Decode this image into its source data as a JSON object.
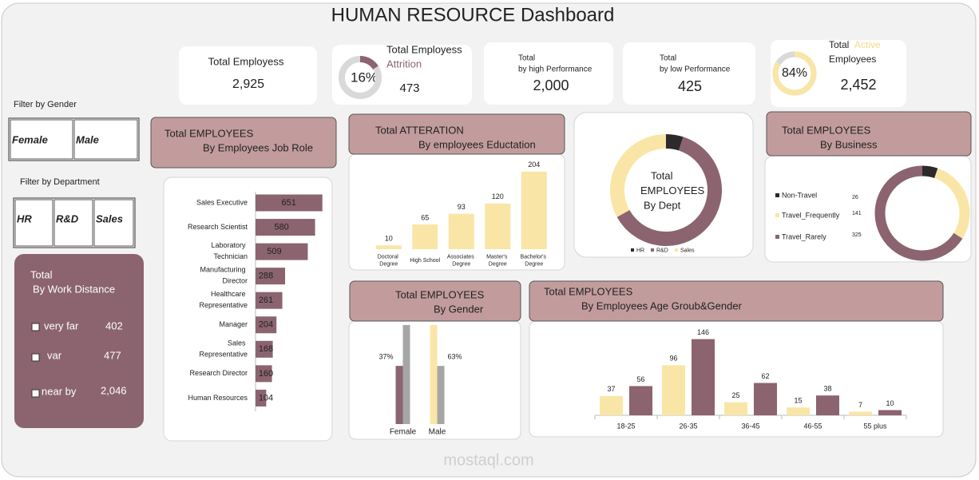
{
  "title": "HUMAN RESOURCE Dashboard",
  "kpis": [
    {
      "lines": [
        "Total Employess"
      ],
      "value": "2,925"
    },
    {
      "lines": [
        "Total Employess",
        "Attrition"
      ],
      "percent": 16,
      "percent_label": "16%",
      "value": "473",
      "color": "#8b6470"
    },
    {
      "lines": [
        "Total",
        "by high Performance"
      ],
      "value": "2,000"
    },
    {
      "lines": [
        "Total",
        "by low Performance"
      ],
      "value": "425"
    },
    {
      "lines": [
        "Total",
        "Active",
        "Employees"
      ],
      "percent": 84,
      "percent_label": "84%",
      "value": "2,452",
      "color": "#f9e6a6"
    }
  ],
  "filters": [
    {
      "label": "Filter by Gender",
      "options": [
        "Female",
        "Male"
      ]
    },
    {
      "label": "Filter by Department",
      "options": [
        "HR",
        "R&D",
        "Sales"
      ]
    }
  ],
  "distance": {
    "lines": [
      "Total",
      "By Work Distance"
    ],
    "items": [
      {
        "label": "very far",
        "value": "402"
      },
      {
        "label": "var",
        "value": "477"
      },
      {
        "label": "near by",
        "value": "2,046"
      }
    ]
  },
  "watermark": "mostaql.com",
  "chart_data": [
    {
      "type": "bar",
      "orientation": "horizontal",
      "title": [
        "Total EMPLOYEES",
        "By Employees Job Role"
      ],
      "categories": [
        "Sales Executive",
        "Research Scientist",
        "Laboratory Technician",
        "Manufacturing Director",
        "Healthcare Representative",
        "Manager",
        "Sales Representative",
        "Research Director",
        "Human Resources"
      ],
      "values": [
        651,
        580,
        509,
        288,
        261,
        204,
        168,
        160,
        104
      ],
      "color": "#8b6470",
      "xlim": [
        0,
        700
      ]
    },
    {
      "type": "bar",
      "title": [
        "Total  ATTERATION",
        "By employees Eductation"
      ],
      "categories": [
        "Doctoral Degree",
        "High School",
        "Associates Degree",
        "Master's Degree",
        "Bachelor's Degree"
      ],
      "values": [
        10,
        65,
        93,
        120,
        204
      ],
      "color": "#f9e6a6",
      "ylim": [
        0,
        210
      ]
    },
    {
      "type": "donut",
      "center_text": [
        "Total",
        "EMPLOYEES",
        "By Dept"
      ],
      "categories": [
        "HR",
        "R&D",
        "Sales"
      ],
      "values": [
        5,
        62,
        33
      ],
      "colors": [
        "#2e2a2c",
        "#8b6470",
        "#f9e6a6"
      ]
    },
    {
      "type": "donut",
      "title": [
        "Total EMPLOYEES",
        "By Business"
      ],
      "categories": [
        "Non-Travel",
        "Travel_Frequently",
        "Travel_Rarely"
      ],
      "values": [
        26,
        141,
        325
      ],
      "colors": [
        "#2e2a2c",
        "#f9e6a6",
        "#8b6470"
      ]
    },
    {
      "type": "bar",
      "title": [
        "Total  EMPLOYEES",
        "By Gender"
      ],
      "categories": [
        "Female",
        "Male"
      ],
      "ylim": [
        0,
        65
      ],
      "series": [
        {
          "colors": [
            "#8b6470",
            "#f9e6a6"
          ],
          "values": [
            37,
            63
          ],
          "value_labels": [
            "37%",
            "63%"
          ]
        },
        {
          "color": "#a6a6a6",
          "values": [
            63,
            37
          ]
        }
      ]
    },
    {
      "type": "bar",
      "title": [
        "Total EMPLOYEES",
        "By Employees Age Groub&Gender"
      ],
      "categories": [
        "18-25",
        "26-35",
        "36-45",
        "46-55",
        "55 plus"
      ],
      "ylim": [
        0,
        150
      ],
      "series": [
        {
          "color": "#f9e6a6",
          "values": [
            37,
            96,
            25,
            15,
            7
          ]
        },
        {
          "color": "#8b6470",
          "values": [
            56,
            146,
            62,
            38,
            10
          ]
        }
      ]
    }
  ]
}
